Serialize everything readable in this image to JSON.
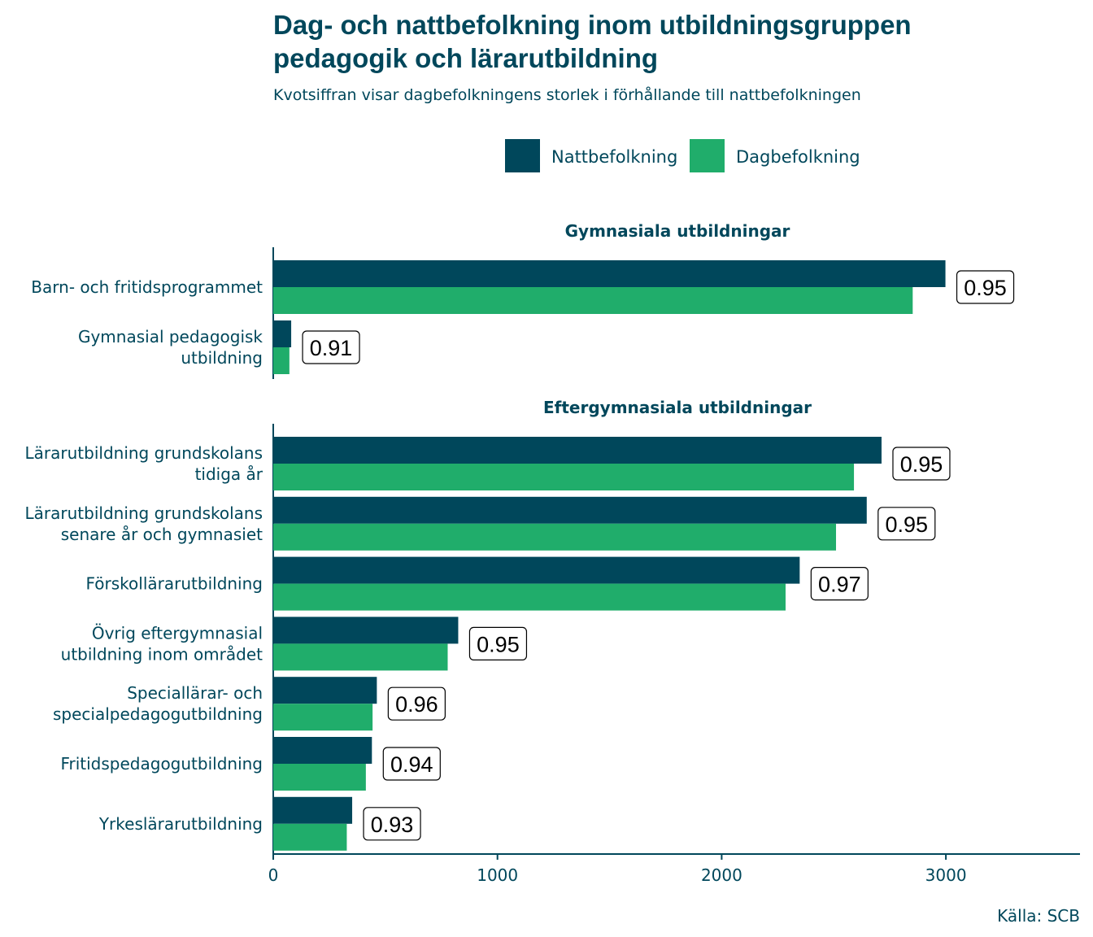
{
  "colors": {
    "natt": "#00475b",
    "dag": "#20ad6b",
    "text": "#00475b",
    "axis": "#00475b"
  },
  "chart_data": {
    "type": "bar",
    "orientation": "horizontal",
    "title_line1": "Dag- och nattbefolkning inom utbildningsgruppen",
    "title_line2": "pedagogik och lärarutbildning",
    "subtitle": "Kvotsiffran visar dagbefolkningens storlek i förhållande till nattbefolkningen",
    "caption": "Källa: SCB",
    "legend_position": "top",
    "legend": [
      {
        "name": "Nattbefolkning",
        "color_key": "natt"
      },
      {
        "name": "Dagbefolkning",
        "color_key": "dag"
      }
    ],
    "xlim": [
      0,
      3600
    ],
    "x_ticks": [
      0,
      1000,
      2000,
      3000
    ],
    "grid": false,
    "panels": [
      {
        "title": "Gymnasiala utbildningar",
        "categories": [
          {
            "label_lines": [
              "Barn- och fritidsprogrammet"
            ],
            "natt": 2998,
            "dag": 2852,
            "ratio": "0.95"
          },
          {
            "label_lines": [
              "Gymnasial pedagogisk",
              "utbildning"
            ],
            "natt": 80,
            "dag": 72,
            "ratio": "0.91"
          }
        ]
      },
      {
        "title": "Eftergymnasiala utbildningar",
        "categories": [
          {
            "label_lines": [
              "Lärarutbildning grundskolans",
              "tidiga år"
            ],
            "natt": 2713,
            "dag": 2590,
            "ratio": "0.95"
          },
          {
            "label_lines": [
              "Lärarutbildning grundskolans",
              "senare år och gymnasiet"
            ],
            "natt": 2647,
            "dag": 2510,
            "ratio": "0.95"
          },
          {
            "label_lines": [
              "Förskollärarutbildning"
            ],
            "natt": 2348,
            "dag": 2285,
            "ratio": "0.97"
          },
          {
            "label_lines": [
              "Övrig eftergymnasial",
              "utbildning inom området"
            ],
            "natt": 825,
            "dag": 778,
            "ratio": "0.95"
          },
          {
            "label_lines": [
              "Speciallärar- och",
              "specialpedagogutbildning"
            ],
            "natt": 462,
            "dag": 443,
            "ratio": "0.96"
          },
          {
            "label_lines": [
              "Fritidspedagogutbildning"
            ],
            "natt": 440,
            "dag": 413,
            "ratio": "0.94"
          },
          {
            "label_lines": [
              "Yrkeslärarutbildning"
            ],
            "natt": 352,
            "dag": 328,
            "ratio": "0.93"
          }
        ]
      }
    ]
  }
}
